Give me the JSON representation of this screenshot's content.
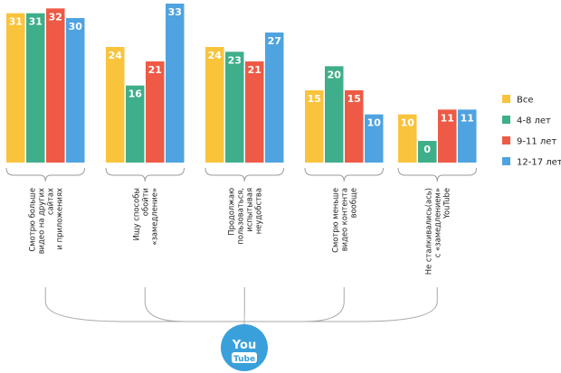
{
  "chart_data": {
    "type": "bar",
    "categories": [
      [
        "Смотрю больше",
        "видео на других",
        "сайтах",
        "и приложениях"
      ],
      [
        "Ищу способы",
        "обойти",
        "«замедление»"
      ],
      [
        "Продолжаю",
        "пользоваться,",
        "испытывая",
        "неудобства"
      ],
      [
        "Смотрю меньше",
        "видео контента",
        "вообще"
      ],
      [
        "Не сталкивались(ась)",
        "с «замедлением»",
        "YouTube"
      ]
    ],
    "series": [
      {
        "name": "Все",
        "color": "#f9c33c",
        "values": [
          31,
          24,
          24,
          15,
          10
        ]
      },
      {
        "name": "4-8 лет",
        "color": "#3fae8a",
        "values": [
          31,
          16,
          23,
          20,
          0
        ]
      },
      {
        "name": "9-11 лет",
        "color": "#ee5a45",
        "values": [
          32,
          21,
          21,
          15,
          11
        ]
      },
      {
        "name": "12-17 лет",
        "color": "#4fa3e0",
        "values": [
          30,
          33,
          27,
          10,
          11
        ]
      }
    ],
    "ylim": [
      0,
      33
    ],
    "legend": "right",
    "grid": false
  },
  "logo": {
    "line1": "You",
    "line2": "Tube",
    "color": "#3aa0dc"
  }
}
